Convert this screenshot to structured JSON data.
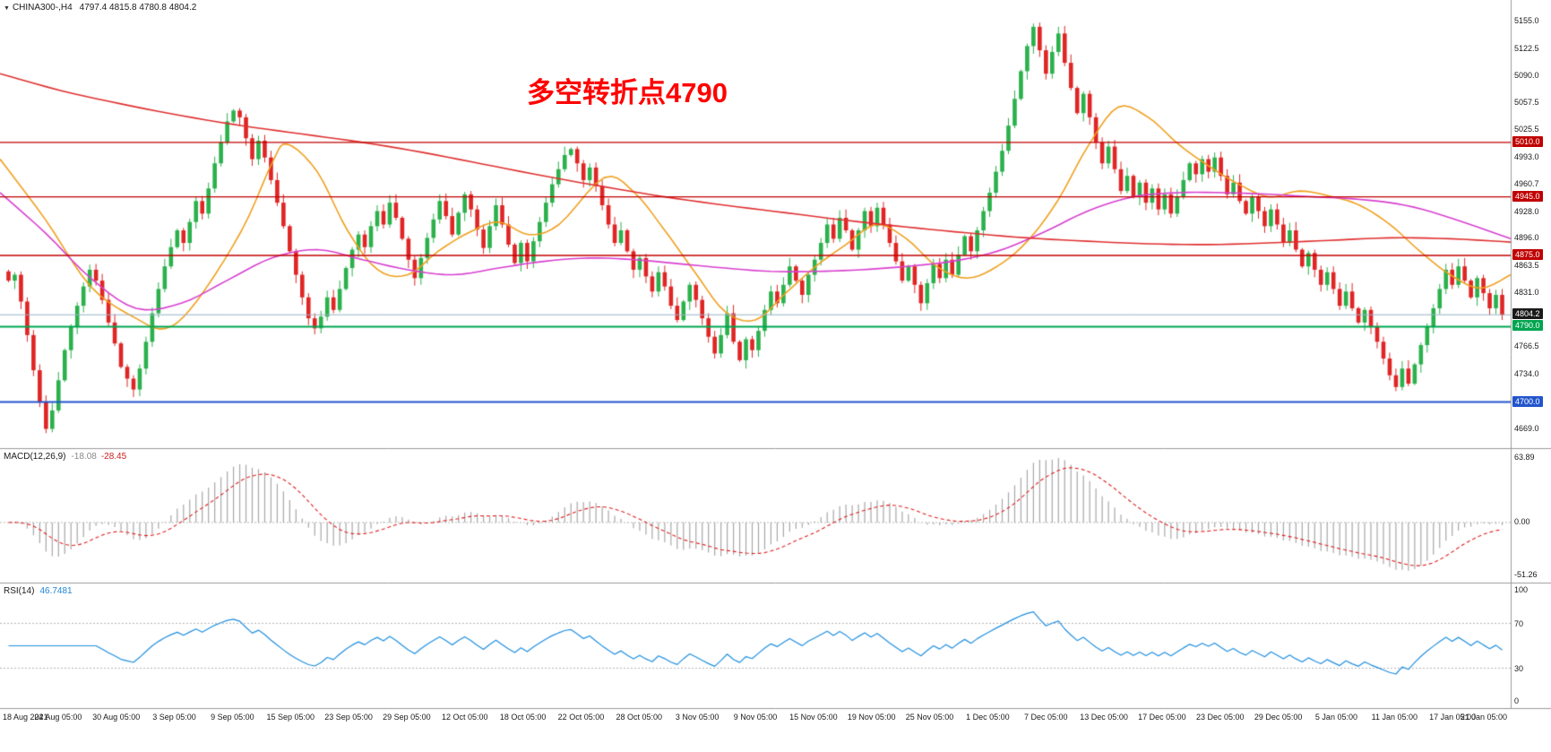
{
  "header": {
    "dropdown_icon": "▼",
    "symbol": "CHINA300-,H4",
    "ohlc": "4797.4 4815.8 4780.8 4804.2"
  },
  "annotation": {
    "text": "多空转折点4790",
    "color": "#ff0000"
  },
  "colors": {
    "candle_up": "#2bb14c",
    "candle_down": "#e02525",
    "ma_slow": "#e03030",
    "ma_mid": "#d840d0",
    "ma_fast": "#f0a01e",
    "hline_red": "#c00000",
    "hline_green": "#00a550",
    "hline_blue": "#2255cc",
    "current_price_line": "#9ab4c8",
    "macd_hist": "#a8a8a8",
    "macd_signal": "#e02020",
    "rsi_line": "#2090e0",
    "separator": "#9a9a9a"
  },
  "chart_data": {
    "type": "candlestick",
    "title": "CHINA300- H4",
    "x_labels": [
      "18 Aug 2021",
      "24 Aug 05:00",
      "30 Aug 05:00",
      "3 Sep 05:00",
      "9 Sep 05:00",
      "15 Sep 05:00",
      "23 Sep 05:00",
      "29 Sep 05:00",
      "12 Oct 05:00",
      "18 Oct 05:00",
      "22 Oct 05:00",
      "28 Oct 05:00",
      "3 Nov 05:00",
      "9 Nov 05:00",
      "15 Nov 05:00",
      "19 Nov 05:00",
      "25 Nov 05:00",
      "1 Dec 05:00",
      "7 Dec 05:00",
      "13 Dec 05:00",
      "17 Dec 05:00",
      "23 Dec 05:00",
      "29 Dec 05:00",
      "5 Jan 05:00",
      "11 Jan 05:00",
      "17 Jan 05:00",
      "21 Jan 05:00"
    ],
    "open_first": 4856,
    "closes": [
      4845,
      4852,
      4820,
      4780,
      4738,
      4700,
      4668,
      4690,
      4726,
      4762,
      4790,
      4815,
      4838,
      4858,
      4845,
      4822,
      4795,
      4770,
      4742,
      4728,
      4715,
      4740,
      4772,
      4806,
      4835,
      4862,
      4885,
      4905,
      4890,
      4915,
      4940,
      4925,
      4955,
      4985,
      5010,
      5035,
      5048,
      5040,
      5015,
      4990,
      5012,
      4992,
      4965,
      4938,
      4910,
      4880,
      4852,
      4825,
      4800,
      4788,
      4802,
      4825,
      4810,
      4835,
      4860,
      4882,
      4900,
      4885,
      4910,
      4928,
      4912,
      4938,
      4920,
      4895,
      4870,
      4848,
      4872,
      4896,
      4918,
      4940,
      4922,
      4900,
      4926,
      4948,
      4930,
      4906,
      4884,
      4910,
      4935,
      4912,
      4888,
      4866,
      4890,
      4868,
      4892,
      4915,
      4938,
      4960,
      4978,
      4995,
      5002,
      4985,
      4965,
      4980,
      4958,
      4935,
      4912,
      4890,
      4905,
      4880,
      4858,
      4872,
      4850,
      4832,
      4855,
      4838,
      4815,
      4798,
      4820,
      4840,
      4822,
      4800,
      4778,
      4758,
      4780,
      4806,
      4772,
      4750,
      4775,
      4762,
      4785,
      4810,
      4832,
      4818,
      4840,
      4862,
      4845,
      4828,
      4852,
      4870,
      4890,
      4912,
      4895,
      4920,
      4905,
      4882,
      4905,
      4928,
      4910,
      4932,
      4912,
      4890,
      4868,
      4845,
      4862,
      4840,
      4818,
      4842,
      4865,
      4848,
      4870,
      4852,
      4876,
      4898,
      4880,
      4905,
      4928,
      4950,
      4975,
      5000,
      5030,
      5062,
      5095,
      5125,
      5148,
      5120,
      5092,
      5118,
      5140,
      5105,
      5075,
      5045,
      5068,
      5040,
      5010,
      4985,
      5005,
      4978,
      4952,
      4970,
      4945,
      4962,
      4938,
      4955,
      4930,
      4948,
      4925,
      4945,
      4965,
      4985,
      4972,
      4990,
      4975,
      4992,
      4970,
      4948,
      4962,
      4940,
      4925,
      4945,
      4928,
      4910,
      4930,
      4912,
      4890,
      4905,
      4882,
      4862,
      4878,
      4858,
      4840,
      4855,
      4835,
      4815,
      4832,
      4812,
      4795,
      4810,
      4790,
      4772,
      4752,
      4732,
      4718,
      4740,
      4722,
      4745,
      4768,
      4790,
      4812,
      4835,
      4858,
      4840,
      4862,
      4845,
      4825,
      4848,
      4830,
      4812,
      4828,
      4804
    ],
    "y_axis": {
      "min": 4645,
      "max": 5180,
      "ticks": [
        {
          "label": "5155.0",
          "price": 5155.0
        },
        {
          "label": "5122.5",
          "price": 5122.5
        },
        {
          "label": "5090.0",
          "price": 5090.0
        },
        {
          "label": "5057.5",
          "price": 5057.5
        },
        {
          "label": "5025.5",
          "price": 5025.5
        },
        {
          "label": "4993.0",
          "price": 4993.0
        },
        {
          "label": "4960.7",
          "price": 4960.7
        },
        {
          "label": "4928.0",
          "price": 4928.0
        },
        {
          "label": "4896.0",
          "price": 4896.0
        },
        {
          "label": "4863.5",
          "price": 4863.5
        },
        {
          "label": "4831.0",
          "price": 4831.0
        },
        {
          "label": "4766.5",
          "price": 4766.5
        },
        {
          "label": "4734.0",
          "price": 4734.0
        },
        {
          "label": "4669.0",
          "price": 4669.0
        }
      ],
      "badges": [
        {
          "label": "5010.0",
          "price": 5010.0,
          "bg": "#c00000"
        },
        {
          "label": "4945.0",
          "price": 4945.0,
          "bg": "#c00000"
        },
        {
          "label": "4875.0",
          "price": 4875.0,
          "bg": "#c00000"
        },
        {
          "label": "4804.2",
          "price": 4804.2,
          "bg": "#1a1a1a"
        },
        {
          "label": "4790.0",
          "price": 4790.0,
          "bg": "#00a550"
        },
        {
          "label": "4700.0",
          "price": 4700.0,
          "bg": "#2255cc"
        }
      ]
    },
    "hlines": [
      {
        "price": 5010.0,
        "color": "#c00000",
        "width": 1.4
      },
      {
        "price": 4945.0,
        "color": "#c00000",
        "width": 1.4
      },
      {
        "price": 4875.0,
        "color": "#c00000",
        "width": 1.4
      },
      {
        "price": 4790.0,
        "color": "#00a550",
        "width": 2
      },
      {
        "price": 4700.0,
        "color": "#2255cc",
        "width": 2
      },
      {
        "price": 4804.2,
        "color": "#9ab4c8",
        "width": 1
      }
    ],
    "ma_lines": [
      {
        "name": "ma-fast-orange",
        "color": "#f0a01e",
        "points": [
          [
            0,
            4990
          ],
          [
            0.03,
            4918
          ],
          [
            0.06,
            4838
          ],
          [
            0.09,
            4800
          ],
          [
            0.11,
            4788
          ],
          [
            0.13,
            4820
          ],
          [
            0.16,
            4905
          ],
          [
            0.18,
            4985
          ],
          [
            0.19,
            5008
          ],
          [
            0.21,
            4975
          ],
          [
            0.23,
            4905
          ],
          [
            0.25,
            4858
          ],
          [
            0.27,
            4852
          ],
          [
            0.29,
            4880
          ],
          [
            0.31,
            4902
          ],
          [
            0.33,
            4915
          ],
          [
            0.35,
            4900
          ],
          [
            0.37,
            4912
          ],
          [
            0.4,
            4968
          ],
          [
            0.42,
            4950
          ],
          [
            0.44,
            4905
          ],
          [
            0.46,
            4855
          ],
          [
            0.48,
            4808
          ],
          [
            0.5,
            4798
          ],
          [
            0.52,
            4830
          ],
          [
            0.54,
            4862
          ],
          [
            0.56,
            4888
          ],
          [
            0.58,
            4912
          ],
          [
            0.6,
            4895
          ],
          [
            0.62,
            4862
          ],
          [
            0.64,
            4848
          ],
          [
            0.66,
            4862
          ],
          [
            0.68,
            4892
          ],
          [
            0.7,
            4940
          ],
          [
            0.72,
            5005
          ],
          [
            0.74,
            5052
          ],
          [
            0.76,
            5040
          ],
          [
            0.78,
            5008
          ],
          [
            0.8,
            4982
          ],
          [
            0.82,
            4960
          ],
          [
            0.84,
            4945
          ],
          [
            0.86,
            4952
          ],
          [
            0.88,
            4946
          ],
          [
            0.9,
            4935
          ],
          [
            0.92,
            4912
          ],
          [
            0.94,
            4880
          ],
          [
            0.96,
            4852
          ],
          [
            0.98,
            4836
          ],
          [
            1,
            4852
          ]
        ]
      },
      {
        "name": "ma-mid-magenta",
        "color": "#d840d0",
        "points": [
          [
            0,
            4950
          ],
          [
            0.03,
            4902
          ],
          [
            0.06,
            4848
          ],
          [
            0.09,
            4812
          ],
          [
            0.12,
            4818
          ],
          [
            0.15,
            4845
          ],
          [
            0.18,
            4872
          ],
          [
            0.21,
            4882
          ],
          [
            0.24,
            4870
          ],
          [
            0.27,
            4858
          ],
          [
            0.3,
            4852
          ],
          [
            0.33,
            4860
          ],
          [
            0.36,
            4868
          ],
          [
            0.39,
            4872
          ],
          [
            0.42,
            4870
          ],
          [
            0.45,
            4865
          ],
          [
            0.48,
            4860
          ],
          [
            0.51,
            4856
          ],
          [
            0.54,
            4856
          ],
          [
            0.57,
            4858
          ],
          [
            0.6,
            4862
          ],
          [
            0.63,
            4868
          ],
          [
            0.66,
            4880
          ],
          [
            0.69,
            4902
          ],
          [
            0.72,
            4928
          ],
          [
            0.75,
            4945
          ],
          [
            0.78,
            4950
          ],
          [
            0.81,
            4950
          ],
          [
            0.84,
            4948
          ],
          [
            0.87,
            4945
          ],
          [
            0.9,
            4942
          ],
          [
            0.93,
            4935
          ],
          [
            0.96,
            4920
          ],
          [
            1,
            4895
          ]
        ]
      },
      {
        "name": "ma-slow-red",
        "color": "#e03030",
        "points": [
          [
            0,
            5092
          ],
          [
            0.04,
            5072
          ],
          [
            0.08,
            5056
          ],
          [
            0.12,
            5042
          ],
          [
            0.16,
            5030
          ],
          [
            0.2,
            5020
          ],
          [
            0.24,
            5010
          ],
          [
            0.28,
            4998
          ],
          [
            0.32,
            4984
          ],
          [
            0.36,
            4970
          ],
          [
            0.4,
            4957
          ],
          [
            0.44,
            4945
          ],
          [
            0.48,
            4935
          ],
          [
            0.52,
            4926
          ],
          [
            0.56,
            4917
          ],
          [
            0.6,
            4909
          ],
          [
            0.64,
            4902
          ],
          [
            0.68,
            4896
          ],
          [
            0.72,
            4892
          ],
          [
            0.76,
            4889
          ],
          [
            0.8,
            4888
          ],
          [
            0.84,
            4890
          ],
          [
            0.88,
            4893
          ],
          [
            0.92,
            4896
          ],
          [
            0.96,
            4895
          ],
          [
            1,
            4891
          ]
        ]
      }
    ],
    "indicators": [
      {
        "name": "macd",
        "label": "MACD(12,26,9)",
        "value_main": "-18.08",
        "value_signal": "-28.45",
        "axis_labels": [
          "63.89",
          "0.00",
          "-51.26"
        ],
        "fast": 12,
        "slow": 26,
        "signal": 9
      },
      {
        "name": "rsi",
        "label": "RSI(14)",
        "value": "46.7481",
        "axis_labels": [
          "100",
          "70",
          "30",
          "0"
        ],
        "period": 14,
        "levels": [
          70,
          30
        ]
      }
    ]
  }
}
